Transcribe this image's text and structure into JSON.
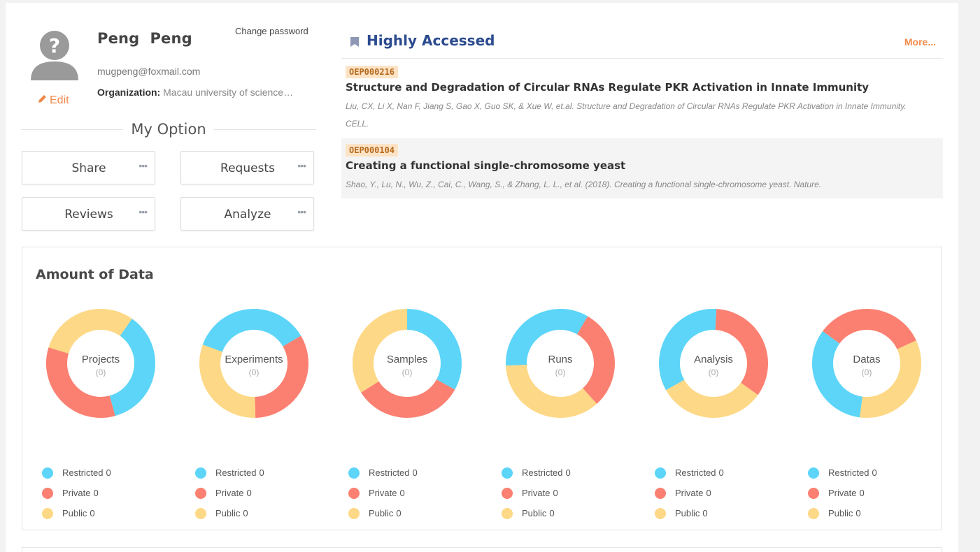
{
  "profile": {
    "name": "Peng  Peng",
    "email": "mugpeng@foxmail.com",
    "organization_label": "Organization:",
    "organization_value": "Macau university of science…",
    "edit_label": "Edit",
    "change_password_label": "Change password"
  },
  "options": {
    "title": "My Option",
    "buttons": [
      {
        "label": "Share"
      },
      {
        "label": "Requests"
      },
      {
        "label": "Reviews"
      },
      {
        "label": "Analyze"
      }
    ]
  },
  "highly_accessed": {
    "title": "Highly Accessed",
    "more_label": "More...",
    "items": [
      {
        "id": "OEP000216",
        "title": "Structure and Degradation of Circular RNAs Regulate PKR Activation in Innate Immunity",
        "citation_line1": "Liu, CX, Li X, Nan F, Jiang S, Gao X, Guo SK, & Xue W, et.al. Structure and Degradation of Circular RNAs Regulate PKR Activation in Innate Immunity.",
        "citation_line2": "CELL."
      },
      {
        "id": "OEP000104",
        "title": "Creating a functional single-chromosome yeast",
        "citation_line1": "Shao, Y., Lu, N., Wu, Z., Cai, C., Wang, S., & Zhang, L. L., et al. (2018). Creating a functional single-chromosome yeast. Nature."
      }
    ]
  },
  "amount": {
    "title": "Amount of Data",
    "colors": {
      "restricted": "#5cd5f8",
      "private": "#fb8071",
      "public": "#fdd886"
    },
    "legend_labels": {
      "restricted": "Restricted",
      "private": "Private",
      "public": "Public"
    },
    "charts": [
      {
        "name": "Projects",
        "count": "(0)",
        "restricted": 0,
        "private": 0,
        "public": 0
      },
      {
        "name": "Experiments",
        "count": "(0)",
        "restricted": 0,
        "private": 0,
        "public": 0
      },
      {
        "name": "Samples",
        "count": "(0)",
        "restricted": 0,
        "private": 0,
        "public": 0
      },
      {
        "name": "Runs",
        "count": "(0)",
        "restricted": 0,
        "private": 0,
        "public": 0
      },
      {
        "name": "Analysis",
        "count": "(0)",
        "restricted": 0,
        "private": 0,
        "public": 0
      },
      {
        "name": "Datas",
        "count": "(0)",
        "restricted": 0,
        "private": 0,
        "public": 0
      }
    ]
  }
}
